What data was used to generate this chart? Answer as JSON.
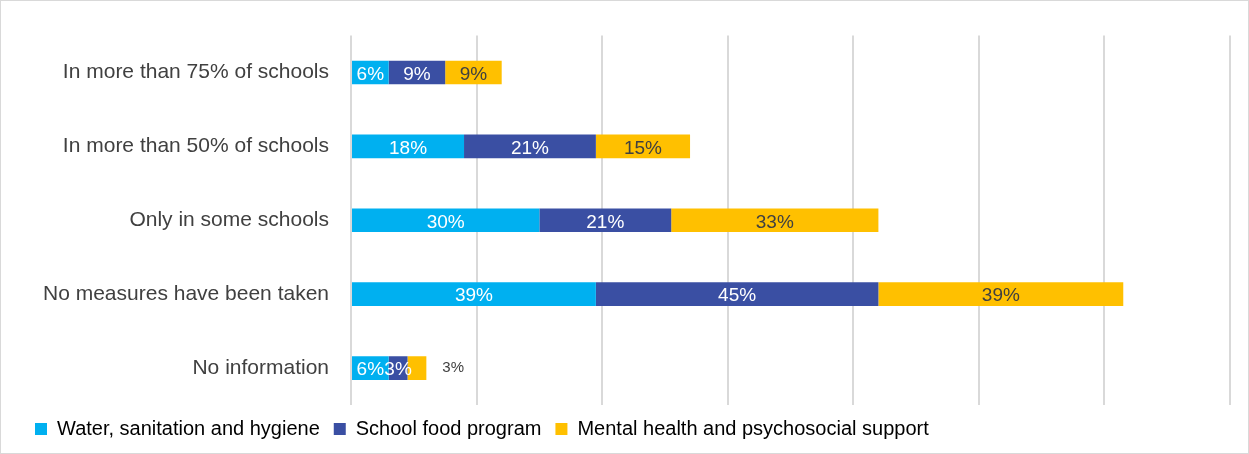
{
  "chart_data": {
    "type": "bar",
    "orientation": "horizontal",
    "stacked": true,
    "categories": [
      "In more than 75% of schools",
      "In more than 50% of schools",
      "Only in some schools",
      "No measures have been taken",
      "No information"
    ],
    "series": [
      {
        "name": "Water, sanitation and hygiene",
        "color": "#00b0f0",
        "values": [
          6,
          18,
          30,
          39,
          6
        ],
        "value_labels": [
          "6%",
          "18%",
          "30%",
          "39%",
          "6%"
        ]
      },
      {
        "name": "School food program",
        "color": "#3a4fa3",
        "values": [
          9,
          21,
          21,
          45,
          3
        ],
        "value_labels": [
          "9%",
          "21%",
          "21%",
          "45%",
          "3%"
        ]
      },
      {
        "name": "Mental health and psychosocial support",
        "color": "#ffc000",
        "values": [
          9,
          15,
          33,
          39,
          3
        ],
        "value_labels": [
          "9%",
          "15%",
          "33%",
          "39%",
          "3%"
        ]
      }
    ],
    "tick_labels": "y",
    "grid": "x",
    "legend": "bottom"
  }
}
